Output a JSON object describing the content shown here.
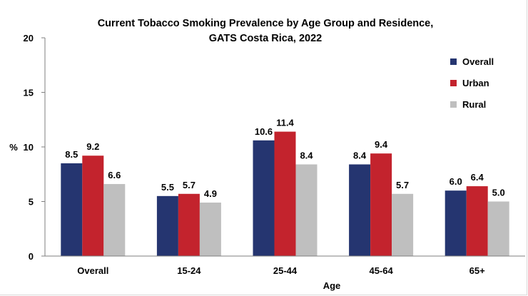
{
  "chart_data": {
    "type": "bar",
    "title": "Current Tobacco Smoking Prevalence by Age Group and Residence,",
    "subtitle": "GATS Costa Rica, 2022",
    "xlabel": "Age",
    "ylabel": "%",
    "ylim": [
      0,
      20
    ],
    "yticks": [
      0,
      5,
      10,
      15,
      20
    ],
    "grid": false,
    "legend_position": "top-right",
    "categories": [
      "Overall",
      "15-24",
      "25-44",
      "45-64",
      "65+"
    ],
    "series": [
      {
        "name": "Overall",
        "color": "#253570",
        "values": [
          8.5,
          5.5,
          10.6,
          8.4,
          6.0
        ],
        "labels": [
          "8.5",
          "5.5",
          "10.6",
          "8.4",
          "6.0"
        ]
      },
      {
        "name": "Urban",
        "color": "#c3232d",
        "values": [
          9.2,
          5.7,
          11.4,
          9.4,
          6.4
        ],
        "labels": [
          "9.2",
          "5.7",
          "11.4",
          "9.4",
          "6.4"
        ]
      },
      {
        "name": "Rural",
        "color": "#bfbfbf",
        "values": [
          6.6,
          4.9,
          8.4,
          5.7,
          5.0
        ],
        "labels": [
          "6.6",
          "4.9",
          "8.4",
          "5.7",
          "5.0"
        ]
      }
    ]
  }
}
